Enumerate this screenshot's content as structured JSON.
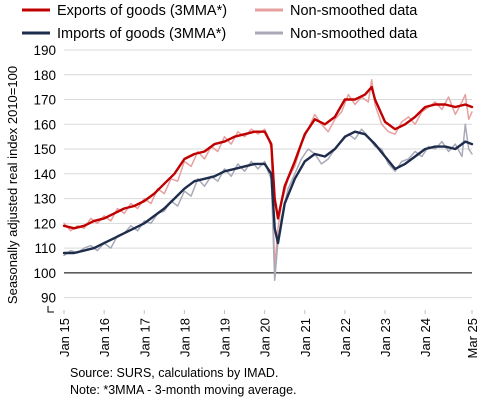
{
  "chart_data": {
    "type": "line",
    "ylabel": "Seasonally adjusted real index 2010=100",
    "ylim": [
      85,
      190
    ],
    "y_ticks": [
      90,
      100,
      110,
      120,
      130,
      140,
      150,
      160,
      170,
      180,
      190
    ],
    "x_tick_labels": [
      "Jan 15",
      "Jan 16",
      "Jan 17",
      "Jan 18",
      "Jan 19",
      "Jan 20",
      "Jan 21",
      "Jan 22",
      "Jan 23",
      "Jan 24",
      "Mar 25"
    ],
    "x_range": [
      "2015-01",
      "2025-03"
    ],
    "reference_line": 100,
    "axis_break": true,
    "grid": "horizontal",
    "legend_position": "top",
    "series": [
      {
        "name": "Exports of goods (3MMA*)",
        "color": "#c00000",
        "smoothed": true,
        "x": [
          "2015-01",
          "2015-04",
          "2015-07",
          "2015-10",
          "2016-01",
          "2016-04",
          "2016-07",
          "2016-10",
          "2017-01",
          "2017-04",
          "2017-07",
          "2017-10",
          "2018-01",
          "2018-04",
          "2018-07",
          "2018-10",
          "2019-01",
          "2019-04",
          "2019-07",
          "2019-10",
          "2020-01",
          "2020-03",
          "2020-04",
          "2020-05",
          "2020-07",
          "2020-10",
          "2021-01",
          "2021-04",
          "2021-07",
          "2021-10",
          "2022-01",
          "2022-04",
          "2022-07",
          "2022-09",
          "2022-10",
          "2023-01",
          "2023-04",
          "2023-07",
          "2023-10",
          "2024-01",
          "2024-04",
          "2024-07",
          "2024-10",
          "2025-01",
          "2025-03"
        ],
        "y": [
          119,
          118,
          119,
          121,
          122,
          124,
          126,
          127,
          129,
          132,
          136,
          140,
          146,
          148,
          149,
          152,
          153,
          155,
          156,
          157,
          157,
          152,
          130,
          122,
          135,
          145,
          156,
          162,
          160,
          163,
          170,
          170,
          172,
          175,
          170,
          161,
          158,
          160,
          163,
          167,
          168,
          168,
          167,
          168,
          167
        ]
      },
      {
        "name": "Non-smoothed data",
        "color": "#e6a0a0",
        "smoothed": false,
        "x": [
          "2015-01",
          "2015-03",
          "2015-05",
          "2015-07",
          "2015-09",
          "2015-11",
          "2016-01",
          "2016-03",
          "2016-05",
          "2016-07",
          "2016-09",
          "2016-11",
          "2017-01",
          "2017-03",
          "2017-05",
          "2017-07",
          "2017-09",
          "2017-11",
          "2018-01",
          "2018-03",
          "2018-05",
          "2018-07",
          "2018-09",
          "2018-11",
          "2019-01",
          "2019-03",
          "2019-05",
          "2019-07",
          "2019-09",
          "2019-11",
          "2020-01",
          "2020-02",
          "2020-03",
          "2020-04",
          "2020-05",
          "2020-06",
          "2020-08",
          "2020-10",
          "2020-12",
          "2021-02",
          "2021-04",
          "2021-06",
          "2021-08",
          "2021-10",
          "2021-12",
          "2022-02",
          "2022-04",
          "2022-06",
          "2022-08",
          "2022-09",
          "2022-10",
          "2022-12",
          "2023-02",
          "2023-04",
          "2023-06",
          "2023-08",
          "2023-10",
          "2023-12",
          "2024-02",
          "2024-04",
          "2024-06",
          "2024-08",
          "2024-10",
          "2024-12",
          "2025-01",
          "2025-02",
          "2025-03"
        ],
        "y": [
          120,
          117,
          119,
          118,
          122,
          120,
          123,
          121,
          126,
          124,
          128,
          126,
          130,
          128,
          134,
          132,
          138,
          137,
          145,
          143,
          149,
          146,
          151,
          149,
          155,
          152,
          157,
          155,
          158,
          156,
          158,
          155,
          150,
          102,
          118,
          128,
          138,
          143,
          152,
          158,
          164,
          160,
          157,
          162,
          165,
          172,
          168,
          171,
          169,
          178,
          168,
          160,
          157,
          156,
          161,
          163,
          160,
          165,
          167,
          169,
          166,
          171,
          164,
          169,
          172,
          162,
          165
        ]
      },
      {
        "name": "Imports of goods (3MMA*)",
        "color": "#1f2d4d",
        "smoothed": true,
        "x": [
          "2015-01",
          "2015-04",
          "2015-07",
          "2015-10",
          "2016-01",
          "2016-04",
          "2016-07",
          "2016-10",
          "2017-01",
          "2017-04",
          "2017-07",
          "2017-10",
          "2018-01",
          "2018-04",
          "2018-07",
          "2018-10",
          "2019-01",
          "2019-04",
          "2019-07",
          "2019-10",
          "2020-01",
          "2020-03",
          "2020-04",
          "2020-05",
          "2020-07",
          "2020-10",
          "2021-01",
          "2021-04",
          "2021-07",
          "2021-10",
          "2022-01",
          "2022-04",
          "2022-07",
          "2022-10",
          "2023-01",
          "2023-04",
          "2023-07",
          "2023-10",
          "2024-01",
          "2024-04",
          "2024-07",
          "2024-10",
          "2025-01",
          "2025-03"
        ],
        "y": [
          108,
          108,
          109,
          110,
          112,
          114,
          116,
          118,
          120,
          123,
          126,
          130,
          134,
          137,
          138,
          139,
          141,
          142,
          143,
          144,
          144,
          140,
          118,
          112,
          128,
          138,
          145,
          148,
          147,
          150,
          155,
          157,
          156,
          152,
          147,
          142,
          144,
          147,
          150,
          151,
          151,
          150,
          153,
          152
        ]
      },
      {
        "name": "Non-smoothed data",
        "color": "#a9a9b8",
        "smoothed": false,
        "x": [
          "2015-01",
          "2015-03",
          "2015-05",
          "2015-07",
          "2015-09",
          "2015-11",
          "2016-01",
          "2016-03",
          "2016-05",
          "2016-07",
          "2016-09",
          "2016-11",
          "2017-01",
          "2017-03",
          "2017-05",
          "2017-07",
          "2017-09",
          "2017-11",
          "2018-01",
          "2018-03",
          "2018-05",
          "2018-07",
          "2018-09",
          "2018-11",
          "2019-01",
          "2019-03",
          "2019-05",
          "2019-07",
          "2019-09",
          "2019-11",
          "2020-01",
          "2020-02",
          "2020-03",
          "2020-04",
          "2020-05",
          "2020-06",
          "2020-08",
          "2020-10",
          "2020-12",
          "2021-02",
          "2021-04",
          "2021-06",
          "2021-08",
          "2021-10",
          "2021-12",
          "2022-02",
          "2022-04",
          "2022-06",
          "2022-08",
          "2022-10",
          "2022-12",
          "2023-02",
          "2023-04",
          "2023-06",
          "2023-08",
          "2023-10",
          "2023-12",
          "2024-02",
          "2024-04",
          "2024-06",
          "2024-08",
          "2024-10",
          "2024-12",
          "2025-01",
          "2025-02",
          "2025-03"
        ],
        "y": [
          107,
          109,
          108,
          110,
          111,
          109,
          112,
          110,
          115,
          116,
          119,
          117,
          121,
          120,
          124,
          125,
          129,
          127,
          133,
          131,
          138,
          135,
          139,
          137,
          142,
          139,
          144,
          141,
          145,
          142,
          145,
          141,
          138,
          97,
          113,
          122,
          134,
          140,
          146,
          150,
          148,
          144,
          146,
          150,
          153,
          156,
          154,
          158,
          155,
          151,
          150,
          144,
          141,
          145,
          146,
          149,
          147,
          151,
          150,
          153,
          149,
          152,
          147,
          160,
          150,
          148
        ]
      }
    ]
  },
  "source_note": "Source: SURS, calculations by IMAD.",
  "footnote": "Note: *3MMA - 3-month moving average."
}
